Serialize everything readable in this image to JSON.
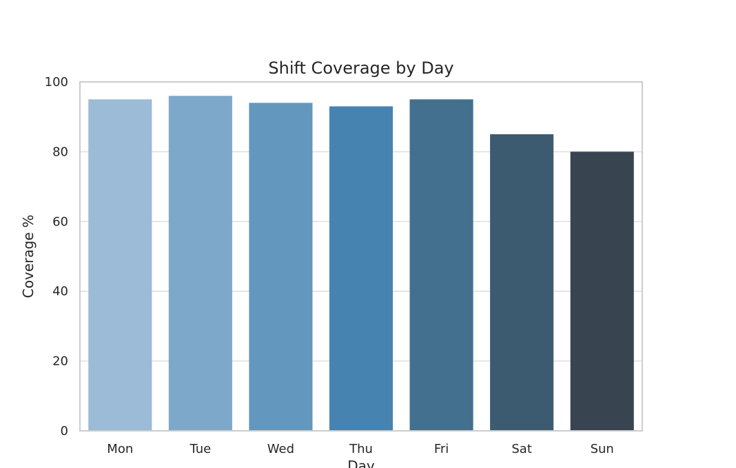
{
  "chart_data": {
    "type": "bar",
    "title": "Shift Coverage by Day",
    "xlabel": "Day",
    "ylabel": "Coverage %",
    "categories": [
      "Mon",
      "Tue",
      "Wed",
      "Thu",
      "Fri",
      "Sat",
      "Sun"
    ],
    "values": [
      95,
      96,
      94,
      93,
      95,
      85,
      80
    ],
    "colors": [
      "#9bbbd6",
      "#7ea8c9",
      "#6497bd",
      "#4783b1",
      "#43708f",
      "#3c5b71",
      "#384550"
    ],
    "ylim": [
      0,
      100
    ],
    "yticks": [
      0,
      20,
      40,
      60,
      80,
      100
    ],
    "ytick_labels": [
      "0",
      "20",
      "40",
      "60",
      "80",
      "100"
    ],
    "grid": "y",
    "legend": "none"
  }
}
